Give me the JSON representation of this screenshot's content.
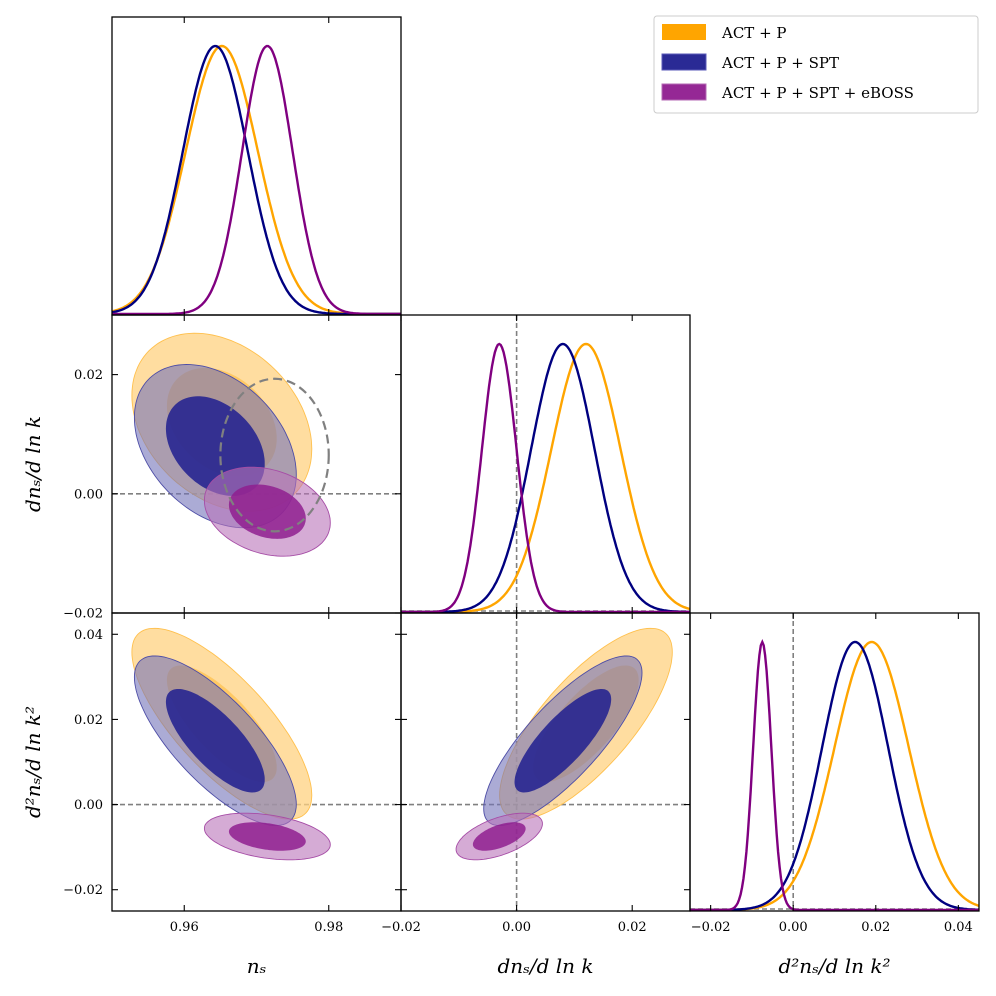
{
  "colors": {
    "act_p": "#FFA500",
    "act_p_spt": "#000080",
    "act_p_spt_eboss": "#800080",
    "reference": "#808080"
  },
  "legend": {
    "placement": "top-right",
    "entries": [
      "ACT + P",
      "ACT + P + SPT",
      "ACT + P + SPT + eBOSS"
    ]
  },
  "chart_data": {
    "type": "triangle",
    "parameters": [
      {
        "key": "ns",
        "label": "nₛ",
        "range": [
          0.95,
          0.99
        ],
        "ticks": [
          0.96,
          0.98
        ],
        "tick_labels": [
          "0.96",
          "0.98"
        ]
      },
      {
        "key": "dns",
        "label": "dnₛ/d ln k",
        "range": [
          -0.02,
          0.03
        ],
        "ticks": [
          -0.02,
          0.0,
          0.02
        ],
        "tick_labels": [
          "−0.02",
          "0.00",
          "0.02"
        ]
      },
      {
        "key": "d2ns",
        "label": "d²nₛ/d ln k²",
        "range": [
          -0.025,
          0.045
        ],
        "ticks": [
          -0.02,
          0.0,
          0.02,
          0.04
        ],
        "tick_labels": [
          "−0.02",
          "0.00",
          "0.02",
          "0.04"
        ]
      }
    ],
    "series": [
      {
        "name": "ACT + P",
        "color_key": "act_p",
        "means": {
          "ns": 0.9652,
          "dns": 0.012,
          "d2ns": 0.019
        },
        "sigmas": {
          "ns": 0.005,
          "dns": 0.006,
          "d2ns": 0.009
        },
        "correlations": {
          "ns_dns": -0.3,
          "ns_d2ns": -0.75,
          "dns_d2ns": 0.75
        }
      },
      {
        "name": "ACT + P + SPT",
        "color_key": "act_p_spt",
        "means": {
          "ns": 0.9643,
          "dns": 0.008,
          "d2ns": 0.015
        },
        "sigmas": {
          "ns": 0.0045,
          "dns": 0.0055,
          "d2ns": 0.008
        },
        "correlations": {
          "ns_dns": -0.35,
          "ns_d2ns": -0.75,
          "dns_d2ns": 0.8
        }
      },
      {
        "name": "ACT + P + SPT + eBOSS",
        "color_key": "act_p_spt_eboss",
        "means": {
          "ns": 0.9715,
          "dns": -0.003,
          "d2ns": -0.0075
        },
        "sigmas": {
          "ns": 0.0035,
          "dns": 0.003,
          "d2ns": 0.0022
        },
        "correlations": {
          "ns_dns": -0.25,
          "ns_d2ns": -0.35,
          "dns_d2ns": 0.55
        }
      }
    ],
    "reference_contour": {
      "panel": "ns_vs_dns",
      "style": "dashed",
      "center": {
        "ns": 0.9725,
        "dns": 0.0065
      },
      "half_width": {
        "ns": 0.0075,
        "dns": 0.0128
      }
    },
    "reference_lines": {
      "dns": 0.0,
      "d2ns": 0.0
    }
  }
}
